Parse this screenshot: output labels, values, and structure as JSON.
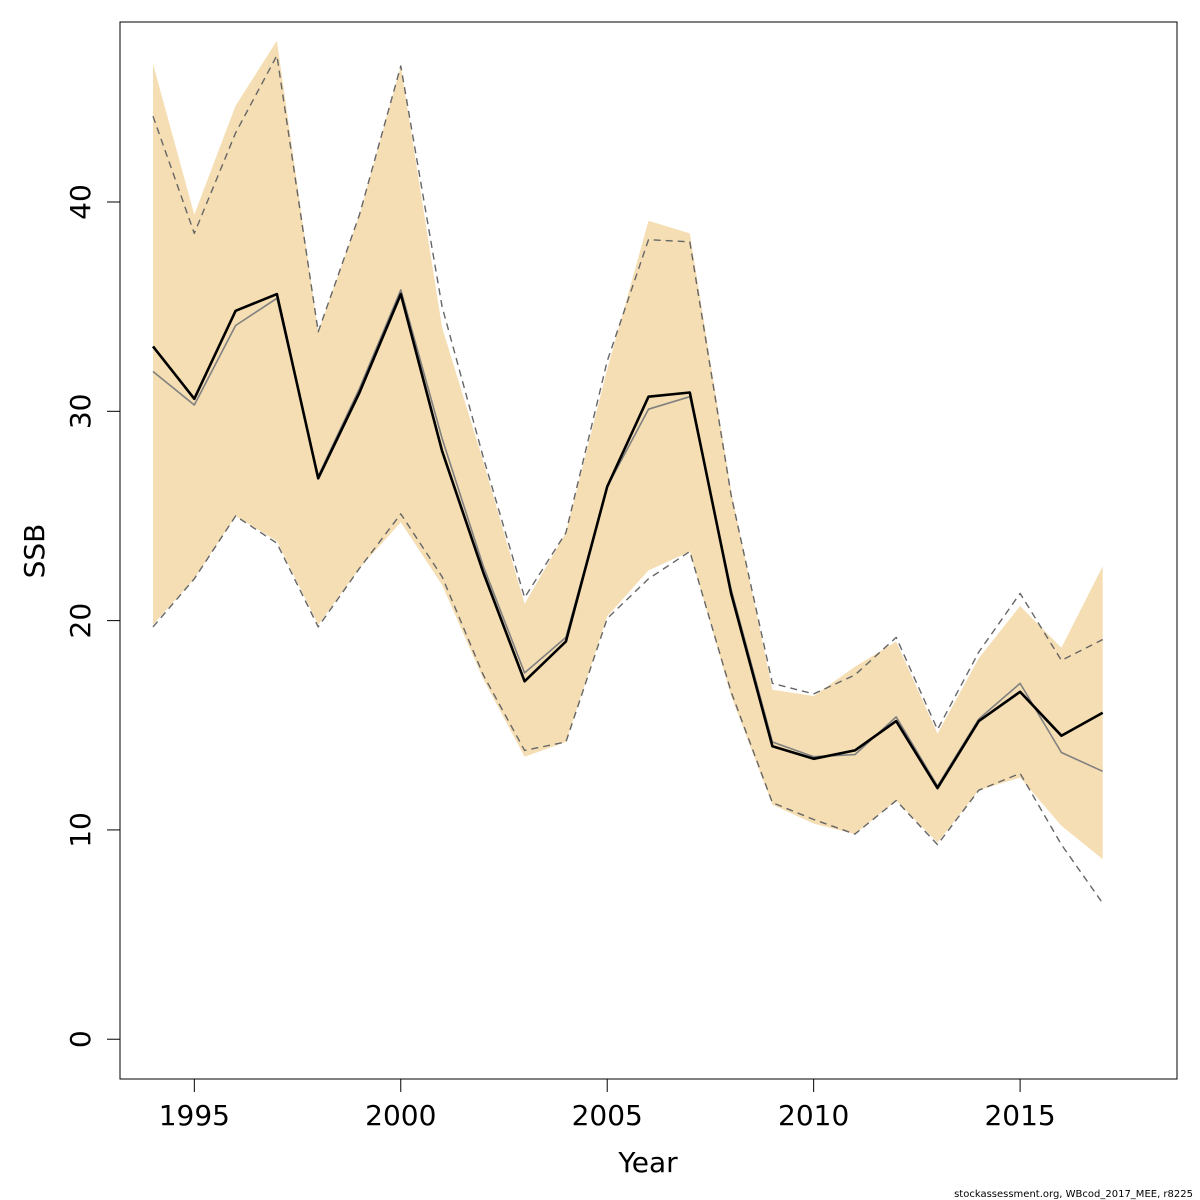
{
  "chart_data": {
    "type": "line",
    "xlabel": "Year",
    "ylabel": "SSB",
    "xlim": [
      1993.2,
      2018.8
    ],
    "ylim": [
      -1.9,
      48.6
    ],
    "x_ticks": [
      1995,
      2000,
      2005,
      2010,
      2015
    ],
    "y_ticks": [
      0,
      10,
      20,
      30,
      40
    ],
    "grid": false,
    "legend": "none",
    "footer": "stockassessment.org, WBcod_2017_MEE, r8225",
    "years": [
      1994,
      1995,
      1996,
      1997,
      1998,
      1999,
      2000,
      2001,
      2002,
      2003,
      2004,
      2005,
      2006,
      2007,
      2008,
      2009,
      2010,
      2011,
      2012,
      2013,
      2014,
      2015,
      2016,
      2017
    ],
    "series": [
      {
        "name": "",
        "role": "confidence-band",
        "color": "#f5deb3",
        "lower": [
          19.8,
          22.0,
          25.0,
          23.8,
          19.8,
          22.5,
          24.7,
          21.7,
          17.2,
          13.5,
          14.2,
          20.2,
          22.4,
          23.3,
          16.4,
          11.2,
          10.3,
          9.8,
          11.4,
          9.4,
          11.9,
          12.5,
          10.2,
          8.6
        ],
        "upper": [
          46.6,
          39.4,
          44.6,
          47.7,
          33.8,
          39.4,
          46.5,
          34.0,
          27.6,
          20.8,
          24.2,
          32.0,
          39.1,
          38.5,
          26.2,
          16.7,
          16.4,
          17.8,
          19.0,
          14.6,
          18.2,
          20.7,
          18.7,
          22.6
        ]
      },
      {
        "name": "",
        "role": "estimate",
        "color": "#000000",
        "values": [
          33.1,
          30.6,
          34.8,
          35.6,
          26.8,
          30.9,
          35.6,
          28.1,
          22.3,
          17.1,
          19.0,
          26.4,
          30.7,
          30.9,
          21.3,
          14.0,
          13.4,
          13.8,
          15.2,
          12.0,
          15.2,
          16.6,
          14.5,
          15.6
        ]
      },
      {
        "name": "",
        "role": "previous-estimate",
        "color": "#808080",
        "values": [
          31.9,
          30.3,
          34.1,
          35.4,
          26.9,
          31.1,
          35.8,
          28.7,
          22.6,
          17.5,
          19.2,
          26.4,
          30.1,
          30.7,
          21.5,
          14.2,
          13.5,
          13.6,
          15.4,
          12.1,
          15.3,
          17.0,
          13.7,
          12.8
        ]
      },
      {
        "name": "",
        "role": "previous-upper",
        "color": "#666666",
        "dashed": true,
        "values": [
          44.1,
          38.5,
          43.3,
          47.0,
          33.8,
          39.4,
          46.5,
          35.0,
          27.8,
          21.1,
          24.2,
          32.4,
          38.2,
          38.1,
          26.0,
          17.0,
          16.5,
          17.4,
          19.2,
          14.8,
          18.5,
          21.3,
          18.1,
          19.1
        ]
      },
      {
        "name": "",
        "role": "previous-lower",
        "color": "#666666",
        "dashed": true,
        "values": [
          19.7,
          22.0,
          25.0,
          23.7,
          19.7,
          22.5,
          25.1,
          22.1,
          17.4,
          13.8,
          14.2,
          20.1,
          22.0,
          23.3,
          16.6,
          11.3,
          10.5,
          9.8,
          11.4,
          9.3,
          11.9,
          12.7,
          9.3,
          6.5
        ]
      }
    ]
  }
}
